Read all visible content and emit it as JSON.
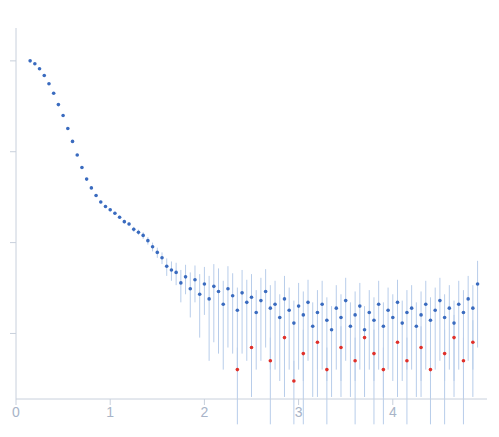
{
  "chart_data": {
    "type": "scatter",
    "log": "y",
    "tick_labels": "x",
    "grid": false,
    "marker": "circle",
    "xlim": [
      0,
      5
    ],
    "xticks": [
      0,
      1,
      2,
      3,
      4
    ],
    "ylim": [
      0.00019,
      2.3
    ],
    "yticks": [
      1,
      0.1,
      0.01,
      0.001
    ],
    "series": [
      {
        "color": "#3a6bbf",
        "x": [
          0.15,
          0.2,
          0.25,
          0.3,
          0.35,
          0.4,
          0.45,
          0.5,
          0.55,
          0.6,
          0.65,
          0.7,
          0.75,
          0.8,
          0.85,
          0.9,
          0.95,
          1.0,
          1.05,
          1.1,
          1.15,
          1.2,
          1.25,
          1.3,
          1.35,
          1.4,
          1.45,
          1.5,
          1.55,
          1.6,
          1.65,
          1.7,
          1.75,
          1.8,
          1.85,
          1.9,
          1.95,
          2.0,
          2.05,
          2.1,
          2.15,
          2.2,
          2.25,
          2.3,
          2.35,
          2.4,
          2.45,
          2.5,
          2.55,
          2.6,
          2.65,
          2.7,
          2.75,
          2.8,
          2.85,
          2.9,
          2.95,
          3.0,
          3.05,
          3.1,
          3.15,
          3.2,
          3.25,
          3.3,
          3.35,
          3.4,
          3.45,
          3.5,
          3.55,
          3.6,
          3.65,
          3.7,
          3.75,
          3.8,
          3.85,
          3.9,
          3.95,
          4.0,
          4.05,
          4.1,
          4.15,
          4.2,
          4.25,
          4.3,
          4.35,
          4.4,
          4.45,
          4.5,
          4.55,
          4.6,
          4.65,
          4.7,
          4.75,
          4.8,
          4.85,
          4.9
        ],
        "values": [
          1.0,
          0.93,
          0.82,
          0.69,
          0.56,
          0.44,
          0.33,
          0.25,
          0.18,
          0.13,
          0.092,
          0.067,
          0.05,
          0.04,
          0.033,
          0.028,
          0.025,
          0.023,
          0.021,
          0.019,
          0.017,
          0.016,
          0.014,
          0.013,
          0.012,
          0.0105,
          0.009,
          0.0078,
          0.0068,
          0.0055,
          0.005,
          0.0047,
          0.0036,
          0.0042,
          0.0031,
          0.0039,
          0.0027,
          0.0035,
          0.0024,
          0.0033,
          0.0029,
          0.0021,
          0.0031,
          0.0026,
          0.0018,
          0.0028,
          0.0022,
          0.0025,
          0.0017,
          0.0023,
          0.0029,
          0.0019,
          0.0021,
          0.0015,
          0.0024,
          0.0018,
          0.0013,
          0.002,
          0.0016,
          0.0022,
          0.0012,
          0.0017,
          0.0021,
          0.0014,
          0.0011,
          0.0019,
          0.0015,
          0.0023,
          0.0012,
          0.0016,
          0.002,
          0.0011,
          0.0017,
          0.0014,
          0.0021,
          0.0012,
          0.0018,
          0.0015,
          0.0022,
          0.0013,
          0.0017,
          0.0019,
          0.0012,
          0.0016,
          0.0021,
          0.0014,
          0.0018,
          0.0023,
          0.0015,
          0.0019,
          0.0013,
          0.0021,
          0.0017,
          0.0024,
          0.0019,
          0.0035
        ],
        "errors": [
          0.002,
          0.002,
          0.002,
          0.002,
          0.002,
          0.002,
          0.002,
          0.002,
          0.001,
          0.001,
          0.001,
          0.001,
          0.001,
          0.001,
          0.001,
          0.001,
          0.001,
          0.001,
          0.0008,
          0.0008,
          0.0008,
          0.0008,
          0.0009,
          0.0009,
          0.001,
          0.001,
          0.001,
          0.001,
          0.001,
          0.0012,
          0.0012,
          0.0013,
          0.0014,
          0.0015,
          0.0016,
          0.0017,
          0.0018,
          0.0019,
          0.0019,
          0.0025,
          0.0023,
          0.0017,
          0.0024,
          0.002,
          0.0014,
          0.0022,
          0.0017,
          0.002,
          0.0013,
          0.0018,
          0.0022,
          0.0015,
          0.0017,
          0.0012,
          0.0019,
          0.0014,
          0.001,
          0.0016,
          0.0013,
          0.0017,
          0.001,
          0.0013,
          0.0017,
          0.0011,
          0.0009,
          0.0015,
          0.0012,
          0.0018,
          0.001,
          0.0013,
          0.0016,
          0.0009,
          0.0013,
          0.0011,
          0.0017,
          0.001,
          0.0014,
          0.0012,
          0.0017,
          0.001,
          0.0013,
          0.0015,
          0.001,
          0.0013,
          0.0017,
          0.0011,
          0.0014,
          0.0018,
          0.0012,
          0.0015,
          0.001,
          0.0017,
          0.0013,
          0.0019,
          0.0015,
          0.0028
        ]
      },
      {
        "color": "#e0302a",
        "x": [
          2.35,
          2.5,
          2.7,
          2.85,
          2.95,
          3.05,
          3.2,
          3.3,
          3.45,
          3.6,
          3.7,
          3.8,
          3.9,
          4.05,
          4.15,
          4.3,
          4.4,
          4.55,
          4.65,
          4.75,
          4.85
        ],
        "values": [
          0.0004,
          0.0007,
          0.0005,
          0.0009,
          0.0003,
          0.0006,
          0.0008,
          0.0004,
          0.0007,
          0.0005,
          0.0009,
          0.0006,
          0.0004,
          0.0008,
          0.0005,
          0.0007,
          0.0004,
          0.0006,
          0.0009,
          0.0005,
          0.0008
        ],
        "errors": [
          0.0003,
          0.0005,
          0.0004,
          0.0007,
          0.0002,
          0.0005,
          0.0006,
          0.0003,
          0.0005,
          0.0004,
          0.0007,
          0.0005,
          0.0003,
          0.0006,
          0.0004,
          0.0005,
          0.0003,
          0.0005,
          0.0007,
          0.0004,
          0.0006
        ]
      }
    ]
  }
}
